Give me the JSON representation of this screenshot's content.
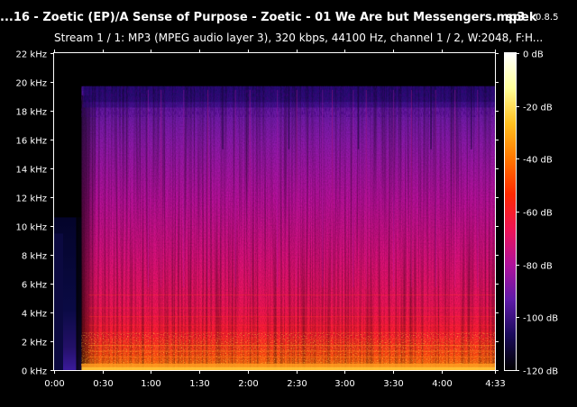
{
  "app": {
    "file_title": "...16 - Zoetic (EP)/A Sense of Purpose - Zoetic - 01 We Are but Messengers.mp3",
    "name": "spek",
    "version": "0.8.5",
    "stream_info": "Stream 1 / 1: MP3 (MPEG audio layer 3), 320 kbps, 44100 Hz, channel 1 / 2, W:2048, F:H..."
  },
  "chart_data": {
    "type": "heatmap",
    "title": "",
    "xlabel": "",
    "ylabel": "",
    "x_ticks": [
      "0:00",
      "0:30",
      "1:00",
      "1:30",
      "2:00",
      "2:30",
      "3:00",
      "3:30",
      "4:00",
      "4:33"
    ],
    "x_tick_seconds": [
      0,
      30,
      60,
      90,
      120,
      150,
      180,
      210,
      240,
      273
    ],
    "xlim_seconds": [
      0,
      273
    ],
    "y_ticks": [
      "0 kHz",
      "2 kHz",
      "4 kHz",
      "6 kHz",
      "8 kHz",
      "10 kHz",
      "12 kHz",
      "14 kHz",
      "16 kHz",
      "18 kHz",
      "20 kHz",
      "22 kHz"
    ],
    "y_tick_khz": [
      0,
      2,
      4,
      6,
      8,
      10,
      12,
      14,
      16,
      18,
      20,
      22
    ],
    "ylim_khz": [
      0,
      22
    ],
    "colorbar": {
      "ticks": [
        "0 dB",
        "-20 dB",
        "-40 dB",
        "-60 dB",
        "-80 dB",
        "-100 dB",
        "-120 dB"
      ],
      "tick_db": [
        0,
        -20,
        -40,
        -60,
        -80,
        -100,
        -120
      ],
      "range_db": [
        -120,
        0
      ],
      "colors": [
        "#000000",
        "#1a0a5a",
        "#5f1aa8",
        "#b0129a",
        "#ee1455",
        "#ff2a00",
        "#ff7700",
        "#ffc020",
        "#ffff99",
        "#ffffff"
      ]
    },
    "content": {
      "music_start_seconds": 17,
      "lowpass_cutoff_khz": 19.7,
      "lead_in_max_khz": 10.6
    }
  }
}
